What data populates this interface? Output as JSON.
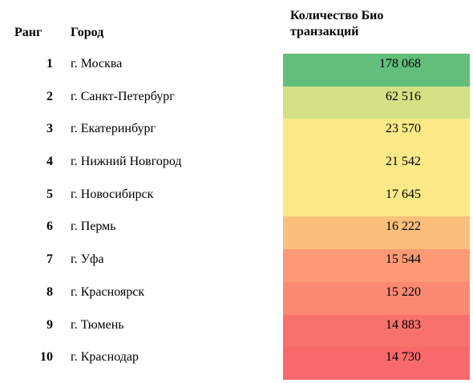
{
  "table": {
    "headers": {
      "rank": "Ранг",
      "city": "Город",
      "count_line1": "Количество Био",
      "count_line2": "транзакций"
    },
    "rows": [
      {
        "rank": "1",
        "city": "г. Москва",
        "value": "178 068",
        "color": "#63be7b"
      },
      {
        "rank": "2",
        "city": "г. Санкт-Петербург",
        "value": "62 516",
        "color": "#d4e084"
      },
      {
        "rank": "3",
        "city": "г. Екатеринбург",
        "value": "23 570",
        "color": "#fae986"
      },
      {
        "rank": "4",
        "city": "г. Нижний Новгород",
        "value": "21 542",
        "color": "#fae986"
      },
      {
        "rank": "5",
        "city": "г. Новосибирск",
        "value": "17 645",
        "color": "#fae986"
      },
      {
        "rank": "6",
        "city": "г. Пермь",
        "value": "16 222",
        "color": "#fcbf7b"
      },
      {
        "rank": "7",
        "city": "г. Уфа",
        "value": "15 544",
        "color": "#fc9a76"
      },
      {
        "rank": "8",
        "city": "г. Красноярск",
        "value": "15 220",
        "color": "#fb8a72"
      },
      {
        "rank": "9",
        "city": "г. Тюмень",
        "value": "14 883",
        "color": "#f8716d"
      },
      {
        "rank": "10",
        "city": "г. Краснодар",
        "value": "14 730",
        "color": "#f8696b"
      }
    ]
  }
}
